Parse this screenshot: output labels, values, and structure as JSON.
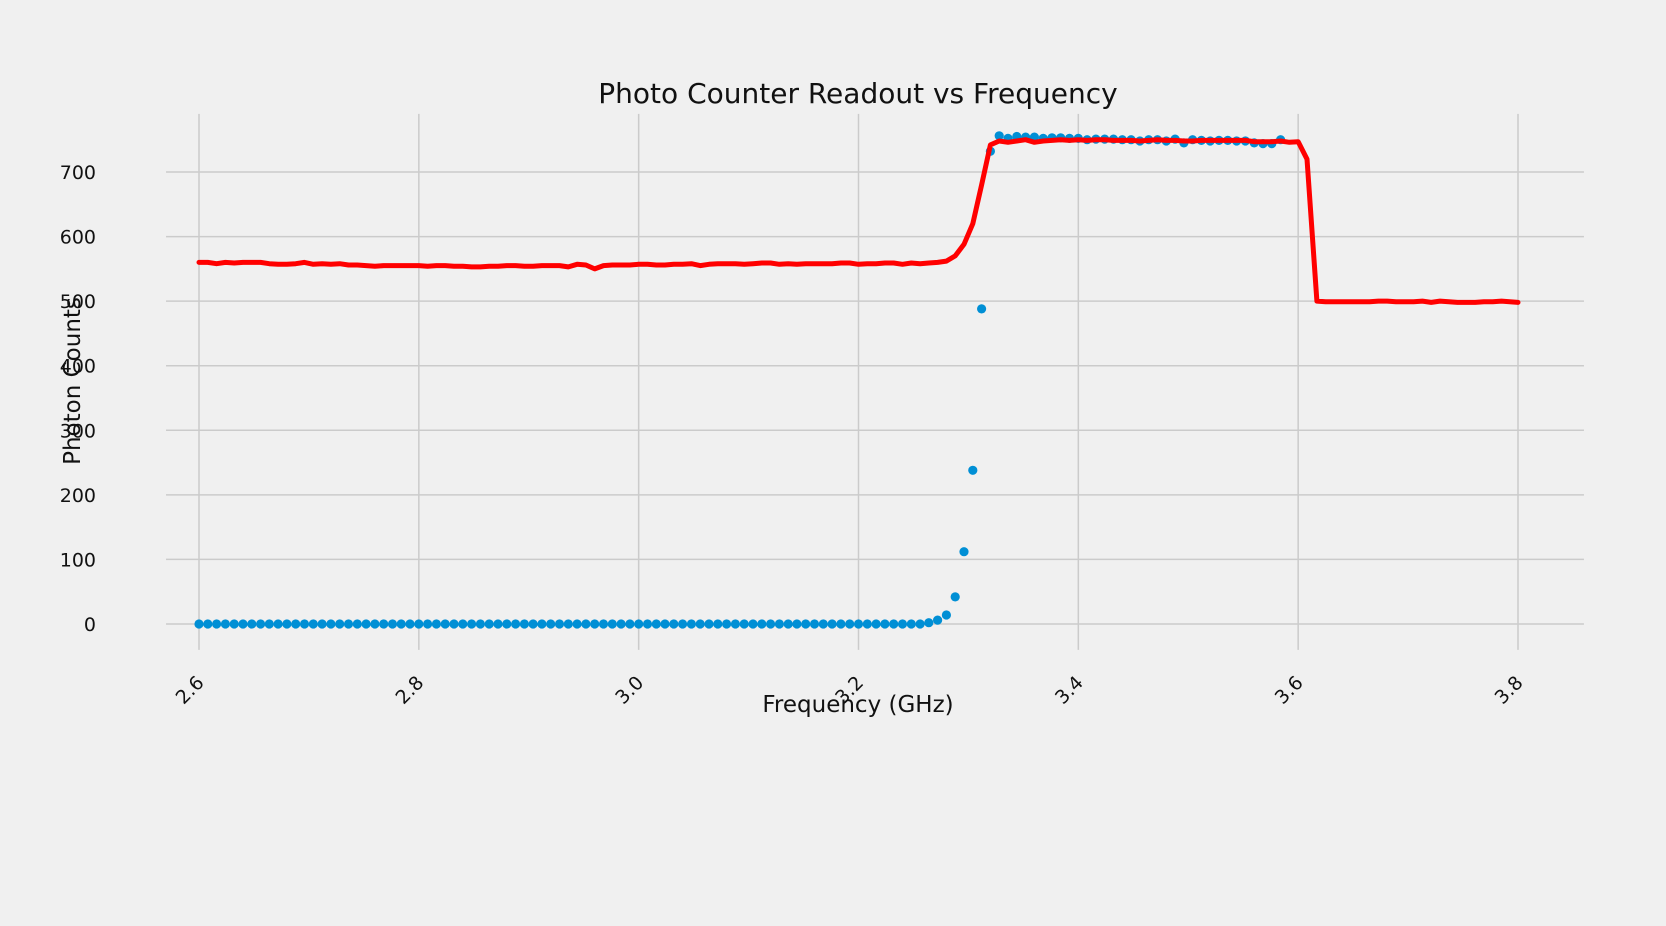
{
  "chart_data": {
    "type": "scatter",
    "title": "Photo Counter Readout vs Frequency",
    "xlabel": "Frequency (GHz)",
    "ylabel": "Photon Counts",
    "xlim": [
      2.57,
      3.86
    ],
    "ylim": [
      -40,
      790
    ],
    "xticks": [
      2.6,
      2.8,
      3.0,
      3.2,
      3.4,
      3.6,
      3.8
    ],
    "xtick_labels": [
      "2.6",
      "2.8",
      "3.0",
      "3.2",
      "3.4",
      "3.6",
      "3.8"
    ],
    "yticks": [
      0,
      100,
      200,
      300,
      400,
      500,
      600,
      700
    ],
    "ytick_labels": [
      "0",
      "100",
      "200",
      "300",
      "400",
      "500",
      "600",
      "700"
    ],
    "grid": true,
    "colors": {
      "scatter": "#008fd5",
      "line": "#ff0000",
      "background": "#f0f0f0",
      "grid": "#cbcbcb"
    },
    "series": [
      {
        "kind": "scatter",
        "points": [
          [
            2.6,
            0
          ],
          [
            2.608,
            0
          ],
          [
            2.616,
            0
          ],
          [
            2.624,
            0
          ],
          [
            2.632,
            0
          ],
          [
            2.64,
            0
          ],
          [
            2.648,
            0
          ],
          [
            2.656,
            0
          ],
          [
            2.664,
            0
          ],
          [
            2.672,
            0
          ],
          [
            2.68,
            0
          ],
          [
            2.688,
            0
          ],
          [
            2.696,
            0
          ],
          [
            2.704,
            0
          ],
          [
            2.712,
            0
          ],
          [
            2.72,
            0
          ],
          [
            2.728,
            0
          ],
          [
            2.736,
            0
          ],
          [
            2.744,
            0
          ],
          [
            2.752,
            0
          ],
          [
            2.76,
            0
          ],
          [
            2.768,
            0
          ],
          [
            2.776,
            0
          ],
          [
            2.784,
            0
          ],
          [
            2.792,
            0
          ],
          [
            2.8,
            0
          ],
          [
            2.808,
            0
          ],
          [
            2.816,
            0
          ],
          [
            2.824,
            0
          ],
          [
            2.832,
            0
          ],
          [
            2.84,
            0
          ],
          [
            2.848,
            0
          ],
          [
            2.856,
            0
          ],
          [
            2.864,
            0
          ],
          [
            2.872,
            0
          ],
          [
            2.88,
            0
          ],
          [
            2.888,
            0
          ],
          [
            2.896,
            0
          ],
          [
            2.904,
            0
          ],
          [
            2.912,
            0
          ],
          [
            2.92,
            0
          ],
          [
            2.928,
            0
          ],
          [
            2.936,
            0
          ],
          [
            2.944,
            0
          ],
          [
            2.952,
            0
          ],
          [
            2.96,
            0
          ],
          [
            2.968,
            0
          ],
          [
            2.976,
            0
          ],
          [
            2.984,
            0
          ],
          [
            2.992,
            0
          ],
          [
            3.0,
            0
          ],
          [
            3.008,
            0
          ],
          [
            3.016,
            0
          ],
          [
            3.024,
            0
          ],
          [
            3.032,
            0
          ],
          [
            3.04,
            0
          ],
          [
            3.048,
            0
          ],
          [
            3.056,
            0
          ],
          [
            3.064,
            0
          ],
          [
            3.072,
            0
          ],
          [
            3.08,
            0
          ],
          [
            3.088,
            0
          ],
          [
            3.096,
            0
          ],
          [
            3.104,
            0
          ],
          [
            3.112,
            0
          ],
          [
            3.12,
            0
          ],
          [
            3.128,
            0
          ],
          [
            3.136,
            0
          ],
          [
            3.144,
            0
          ],
          [
            3.152,
            0
          ],
          [
            3.16,
            0
          ],
          [
            3.168,
            0
          ],
          [
            3.176,
            0
          ],
          [
            3.184,
            0
          ],
          [
            3.192,
            0
          ],
          [
            3.2,
            0
          ],
          [
            3.208,
            0
          ],
          [
            3.216,
            0
          ],
          [
            3.224,
            0
          ],
          [
            3.232,
            0
          ],
          [
            3.24,
            0
          ],
          [
            3.248,
            0
          ],
          [
            3.256,
            0
          ],
          [
            3.264,
            2
          ],
          [
            3.272,
            6
          ],
          [
            3.28,
            14
          ],
          [
            3.288,
            42
          ],
          [
            3.296,
            112
          ],
          [
            3.304,
            238
          ],
          [
            3.312,
            488
          ],
          [
            3.32,
            732
          ],
          [
            3.328,
            756
          ],
          [
            3.336,
            752
          ],
          [
            3.344,
            755
          ],
          [
            3.352,
            754
          ],
          [
            3.36,
            754
          ],
          [
            3.368,
            752
          ],
          [
            3.376,
            753
          ],
          [
            3.384,
            753
          ],
          [
            3.392,
            752
          ],
          [
            3.4,
            752
          ],
          [
            3.408,
            750
          ],
          [
            3.416,
            751
          ],
          [
            3.424,
            751
          ],
          [
            3.432,
            751
          ],
          [
            3.44,
            750
          ],
          [
            3.448,
            750
          ],
          [
            3.456,
            748
          ],
          [
            3.464,
            750
          ],
          [
            3.472,
            750
          ],
          [
            3.48,
            748
          ],
          [
            3.488,
            751
          ],
          [
            3.496,
            745
          ],
          [
            3.504,
            750
          ],
          [
            3.512,
            749
          ],
          [
            3.52,
            748
          ],
          [
            3.528,
            749
          ],
          [
            3.536,
            749
          ],
          [
            3.544,
            748
          ],
          [
            3.552,
            748
          ],
          [
            3.56,
            745
          ],
          [
            3.568,
            744
          ],
          [
            3.576,
            744
          ],
          [
            3.584,
            750
          ]
        ]
      },
      {
        "kind": "line",
        "points": [
          [
            2.6,
            560
          ],
          [
            2.608,
            560
          ],
          [
            2.616,
            558
          ],
          [
            2.624,
            560
          ],
          [
            2.632,
            559
          ],
          [
            2.64,
            560
          ],
          [
            2.648,
            560
          ],
          [
            2.656,
            560
          ],
          [
            2.664,
            558
          ],
          [
            2.672,
            557
          ],
          [
            2.68,
            557
          ],
          [
            2.688,
            558
          ],
          [
            2.696,
            560
          ],
          [
            2.704,
            557
          ],
          [
            2.712,
            558
          ],
          [
            2.72,
            557
          ],
          [
            2.728,
            558
          ],
          [
            2.736,
            556
          ],
          [
            2.744,
            556
          ],
          [
            2.752,
            555
          ],
          [
            2.76,
            554
          ],
          [
            2.768,
            555
          ],
          [
            2.776,
            555
          ],
          [
            2.784,
            555
          ],
          [
            2.792,
            555
          ],
          [
            2.8,
            555
          ],
          [
            2.808,
            554
          ],
          [
            2.816,
            555
          ],
          [
            2.824,
            555
          ],
          [
            2.832,
            554
          ],
          [
            2.84,
            554
          ],
          [
            2.848,
            553
          ],
          [
            2.856,
            553
          ],
          [
            2.864,
            554
          ],
          [
            2.872,
            554
          ],
          [
            2.88,
            555
          ],
          [
            2.888,
            555
          ],
          [
            2.896,
            554
          ],
          [
            2.904,
            554
          ],
          [
            2.912,
            555
          ],
          [
            2.92,
            555
          ],
          [
            2.928,
            555
          ],
          [
            2.936,
            553
          ],
          [
            2.944,
            557
          ],
          [
            2.952,
            556
          ],
          [
            2.96,
            550
          ],
          [
            2.968,
            555
          ],
          [
            2.976,
            556
          ],
          [
            2.984,
            556
          ],
          [
            2.992,
            556
          ],
          [
            3.0,
            557
          ],
          [
            3.008,
            557
          ],
          [
            3.016,
            556
          ],
          [
            3.024,
            556
          ],
          [
            3.032,
            557
          ],
          [
            3.04,
            557
          ],
          [
            3.048,
            558
          ],
          [
            3.056,
            555
          ],
          [
            3.064,
            557
          ],
          [
            3.072,
            558
          ],
          [
            3.08,
            558
          ],
          [
            3.088,
            558
          ],
          [
            3.096,
            557
          ],
          [
            3.104,
            558
          ],
          [
            3.112,
            559
          ],
          [
            3.12,
            559
          ],
          [
            3.128,
            557
          ],
          [
            3.136,
            558
          ],
          [
            3.144,
            557
          ],
          [
            3.152,
            558
          ],
          [
            3.16,
            558
          ],
          [
            3.168,
            558
          ],
          [
            3.176,
            558
          ],
          [
            3.184,
            559
          ],
          [
            3.192,
            559
          ],
          [
            3.2,
            557
          ],
          [
            3.208,
            558
          ],
          [
            3.216,
            558
          ],
          [
            3.224,
            559
          ],
          [
            3.232,
            559
          ],
          [
            3.24,
            557
          ],
          [
            3.248,
            559
          ],
          [
            3.256,
            558
          ],
          [
            3.264,
            559
          ],
          [
            3.272,
            560
          ],
          [
            3.28,
            562
          ],
          [
            3.288,
            570
          ],
          [
            3.296,
            588
          ],
          [
            3.304,
            620
          ],
          [
            3.312,
            680
          ],
          [
            3.32,
            742
          ],
          [
            3.328,
            748
          ],
          [
            3.336,
            746
          ],
          [
            3.344,
            748
          ],
          [
            3.352,
            750
          ],
          [
            3.36,
            746
          ],
          [
            3.368,
            748
          ],
          [
            3.376,
            749
          ],
          [
            3.384,
            750
          ],
          [
            3.392,
            749
          ],
          [
            3.4,
            750
          ],
          [
            3.408,
            749
          ],
          [
            3.416,
            750
          ],
          [
            3.424,
            750
          ],
          [
            3.432,
            749
          ],
          [
            3.44,
            749
          ],
          [
            3.448,
            749
          ],
          [
            3.456,
            748
          ],
          [
            3.464,
            749
          ],
          [
            3.472,
            750
          ],
          [
            3.48,
            749
          ],
          [
            3.488,
            749
          ],
          [
            3.496,
            748
          ],
          [
            3.504,
            748
          ],
          [
            3.512,
            749
          ],
          [
            3.52,
            749
          ],
          [
            3.528,
            749
          ],
          [
            3.536,
            749
          ],
          [
            3.544,
            749
          ],
          [
            3.552,
            749
          ],
          [
            3.56,
            747
          ],
          [
            3.568,
            747
          ],
          [
            3.576,
            747
          ],
          [
            3.584,
            748
          ],
          [
            3.592,
            746
          ],
          [
            3.6,
            747
          ],
          [
            3.608,
            720
          ],
          [
            3.617,
            500
          ],
          [
            3.625,
            499
          ],
          [
            3.633,
            499
          ],
          [
            3.641,
            499
          ],
          [
            3.649,
            499
          ],
          [
            3.657,
            499
          ],
          [
            3.665,
            499
          ],
          [
            3.673,
            500
          ],
          [
            3.681,
            500
          ],
          [
            3.689,
            499
          ],
          [
            3.697,
            499
          ],
          [
            3.705,
            499
          ],
          [
            3.713,
            500
          ],
          [
            3.721,
            498
          ],
          [
            3.729,
            500
          ],
          [
            3.737,
            499
          ],
          [
            3.745,
            498
          ],
          [
            3.753,
            498
          ],
          [
            3.761,
            498
          ],
          [
            3.769,
            499
          ],
          [
            3.777,
            499
          ],
          [
            3.785,
            500
          ],
          [
            3.8,
            498
          ]
        ]
      }
    ]
  }
}
